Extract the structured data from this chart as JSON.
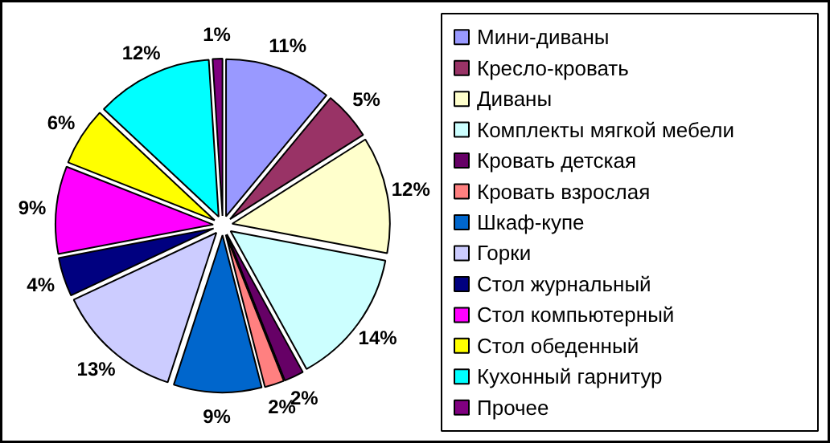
{
  "chart_data": {
    "type": "pie",
    "categories": [
      "Мини-диваны",
      "Кресло-кровать",
      "Диваны",
      "Комплекты мягкой мебели",
      "Кровать детская",
      "Кровать взрослая",
      "Шкаф-купе",
      "Горки",
      "Стол журнальный",
      "Стол компьютерный",
      "Стол обеденный",
      "Кухонный гарнитур",
      "Прочее"
    ],
    "values": [
      11,
      5,
      12,
      14,
      2,
      2,
      9,
      13,
      4,
      9,
      6,
      12,
      1
    ],
    "colors": [
      "#9999ff",
      "#993366",
      "#ffffcc",
      "#ccffff",
      "#660066",
      "#ff8080",
      "#0066cc",
      "#ccccff",
      "#000080",
      "#ff00ff",
      "#ffff00",
      "#00ffff",
      "#800080"
    ],
    "value_labels": [
      "11%",
      "5%",
      "12%",
      "14%",
      "2%",
      "2%",
      "9%",
      "13%",
      "4%",
      "9%",
      "6%",
      "12%",
      "1%"
    ],
    "legend": "right"
  }
}
